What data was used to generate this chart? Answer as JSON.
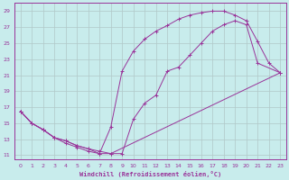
{
  "xlabel": "Windchill (Refroidissement éolien,°C)",
  "bg_color": "#c8ecec",
  "line_color": "#993399",
  "grid_color": "#b0c8c8",
  "xlim": [
    -0.5,
    23.5
  ],
  "ylim": [
    10.5,
    30
  ],
  "xticks": [
    0,
    1,
    2,
    3,
    4,
    5,
    6,
    7,
    8,
    9,
    10,
    11,
    12,
    13,
    14,
    15,
    16,
    17,
    18,
    19,
    20,
    21,
    22,
    23
  ],
  "yticks": [
    11,
    13,
    15,
    17,
    19,
    21,
    23,
    25,
    27,
    29
  ],
  "line1_x": [
    0,
    1,
    2,
    3,
    4,
    5,
    6,
    7,
    8,
    23
  ],
  "line1_y": [
    16.5,
    15.0,
    14.2,
    13.2,
    12.5,
    12.0,
    11.5,
    11.2,
    11.2,
    21.3
  ],
  "line2_x": [
    0,
    1,
    2,
    3,
    4,
    5,
    6,
    7,
    8,
    9,
    10,
    11,
    12,
    13,
    14,
    15,
    16,
    17,
    18,
    19,
    20,
    21,
    22,
    23
  ],
  "line2_y": [
    16.5,
    15.0,
    14.2,
    13.2,
    12.8,
    12.2,
    11.8,
    11.2,
    14.5,
    21.5,
    24.0,
    25.5,
    26.5,
    27.2,
    28.0,
    28.5,
    28.8,
    29.0,
    29.0,
    28.5,
    27.8,
    25.2,
    22.5,
    21.3
  ],
  "line3_x": [
    0,
    1,
    2,
    3,
    4,
    5,
    6,
    7,
    8,
    9,
    10,
    11,
    12,
    13,
    14,
    15,
    16,
    17,
    18,
    19,
    20,
    21,
    23
  ],
  "line3_y": [
    16.5,
    15.0,
    14.2,
    13.2,
    12.8,
    12.2,
    11.8,
    11.5,
    11.2,
    11.2,
    15.5,
    17.5,
    18.5,
    21.5,
    22.0,
    23.5,
    25.0,
    26.5,
    27.3,
    27.8,
    27.3,
    22.5,
    21.3
  ]
}
